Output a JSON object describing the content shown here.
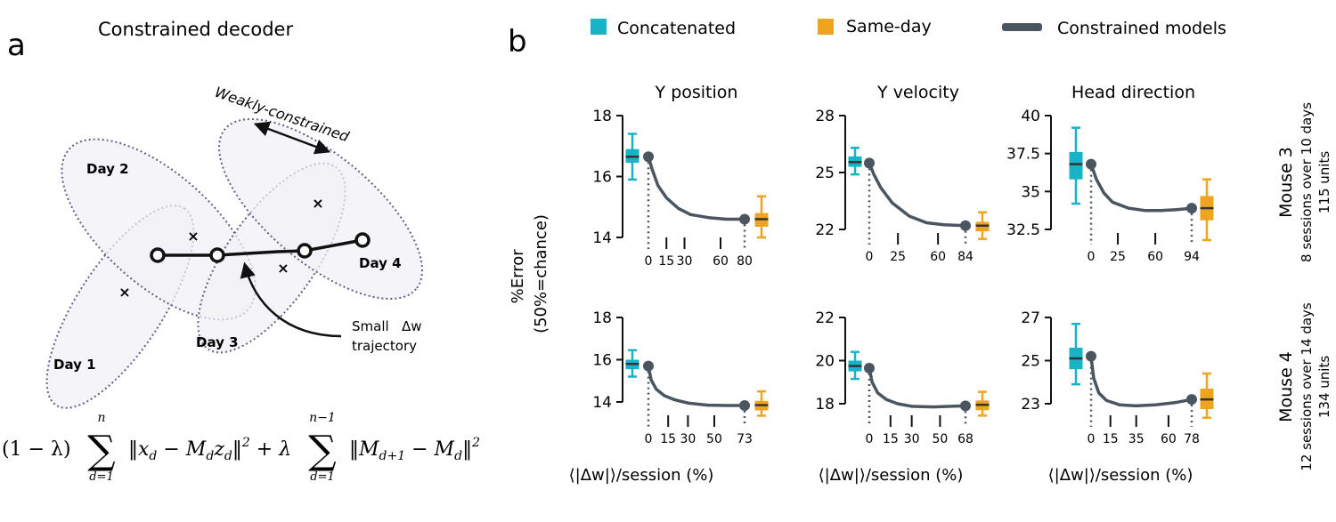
{
  "panel_a": {
    "letter": "a",
    "title": "Constrained decoder",
    "constraint_label": "Weakly-constrained",
    "days": [
      "Day 1",
      "Day 2",
      "Day 3",
      "Day 4"
    ],
    "annotation_line1": "Small   Δw",
    "annotation_line2": "trajectory",
    "equation": {
      "p1": "(1 − λ)",
      "sum_top_1": "n",
      "sum_bottom_1": "d=1",
      "norm1": "‖x",
      "norm1_sub": "d",
      "minus1": " − M",
      "minus1_sub": "d",
      "z": "z",
      "z_sub": "d",
      "close1": "‖",
      "sq1": "2",
      "plus": " + λ",
      "sum_top_2": "n−1",
      "sum_bottom_2": "d=1",
      "norm2": "‖M",
      "norm2_sub": "d+1",
      "minus2": " − M",
      "minus2_sub": "d",
      "close2": "‖",
      "sq2": "2"
    }
  },
  "panel_b": {
    "letter": "b",
    "y_axis_label_line1": "%Error",
    "y_axis_label_line2": "(50%=chance)",
    "x_axis_label": "⟨|Δw|⟩/session (%)"
  },
  "legend": [
    {
      "label": "Concatenated",
      "color": "#17b3c6",
      "shape": "square"
    },
    {
      "label": "Same-day",
      "color": "#eea41f",
      "shape": "square"
    },
    {
      "label": "Constrained models",
      "color": "#4a5560",
      "shape": "line"
    }
  ],
  "row_labels": [
    {
      "mouse": "Mouse 3",
      "detail1": "8 sessions over 10 days",
      "detail2": "115 units"
    },
    {
      "mouse": "Mouse 4",
      "detail1": "12 sessions over 14 days",
      "detail2": "134 units"
    }
  ],
  "chart_data": [
    {
      "type": "line",
      "title": "Y position",
      "row": 0,
      "ylim": [
        14,
        18
      ],
      "yticks": [
        14,
        16,
        18
      ],
      "xlim": [
        0,
        80
      ],
      "xticks": [
        0,
        15,
        30,
        60,
        80
      ],
      "curve_x": [
        0,
        3,
        8,
        15,
        25,
        35,
        50,
        65,
        80
      ],
      "curve_y": [
        16.65,
        16.25,
        15.7,
        15.3,
        14.95,
        14.75,
        14.65,
        14.6,
        14.6
      ],
      "concatenated_box": {
        "min": 15.9,
        "q1": 16.45,
        "median": 16.65,
        "q3": 16.9,
        "max": 17.4
      },
      "same_day_box": {
        "min": 14.0,
        "q1": 14.35,
        "median": 14.6,
        "q3": 14.8,
        "max": 15.35
      }
    },
    {
      "type": "line",
      "title": "Y velocity",
      "row": 0,
      "ylim": [
        22,
        28
      ],
      "yticks": [
        22,
        25,
        28
      ],
      "ytick_labels": [
        "22",
        "25",
        "28"
      ],
      "xlim": [
        0,
        84
      ],
      "xticks": [
        0,
        25,
        60,
        84
      ],
      "curve_x": [
        0,
        4,
        10,
        20,
        35,
        50,
        65,
        84
      ],
      "curve_y": [
        25.5,
        24.9,
        24.2,
        23.4,
        22.7,
        22.35,
        22.25,
        22.2
      ],
      "concatenated_box": {
        "min": 24.9,
        "q1": 25.3,
        "median": 25.55,
        "q3": 25.85,
        "max": 26.3
      },
      "same_day_box": {
        "min": 21.5,
        "q1": 21.9,
        "median": 22.2,
        "q3": 22.4,
        "max": 22.9
      }
    },
    {
      "type": "line",
      "title": "Head direction",
      "row": 0,
      "ylim": [
        32.5,
        40
      ],
      "yticks": [
        32.5,
        35,
        37.5,
        40
      ],
      "ytick_labels": [
        "32.5",
        "35",
        "37.5",
        "40"
      ],
      "xlim": [
        0,
        94
      ],
      "xticks": [
        0,
        25,
        60,
        94
      ],
      "curve_x": [
        0,
        5,
        12,
        20,
        35,
        50,
        65,
        80,
        94
      ],
      "curve_y": [
        36.8,
        35.8,
        34.9,
        34.3,
        33.9,
        33.75,
        33.75,
        33.8,
        33.9
      ],
      "concatenated_box": {
        "min": 34.2,
        "q1": 35.8,
        "median": 36.8,
        "q3": 37.6,
        "max": 39.2
      },
      "same_day_box": {
        "min": 31.8,
        "q1": 33.1,
        "median": 33.9,
        "q3": 34.7,
        "max": 35.8
      }
    },
    {
      "type": "line",
      "title": "",
      "row": 1,
      "ylim": [
        14,
        18
      ],
      "yticks": [
        14,
        16,
        18
      ],
      "xlim": [
        0,
        73
      ],
      "xticks": [
        0,
        15,
        30,
        50,
        73
      ],
      "curve_x": [
        0,
        2,
        6,
        12,
        20,
        30,
        45,
        60,
        73
      ],
      "curve_y": [
        15.7,
        15.05,
        14.6,
        14.3,
        14.1,
        13.95,
        13.85,
        13.83,
        13.83
      ],
      "concatenated_box": {
        "min": 15.2,
        "q1": 15.55,
        "median": 15.8,
        "q3": 16.0,
        "max": 16.45
      },
      "same_day_box": {
        "min": 13.35,
        "q1": 13.6,
        "median": 13.85,
        "q3": 14.05,
        "max": 14.5
      }
    },
    {
      "type": "line",
      "title": "",
      "row": 1,
      "ylim": [
        18,
        22
      ],
      "yticks": [
        18,
        20,
        22
      ],
      "xlim": [
        0,
        68
      ],
      "xticks": [
        0,
        15,
        30,
        50,
        68
      ],
      "curve_x": [
        0,
        2,
        6,
        12,
        20,
        30,
        45,
        58,
        68
      ],
      "curve_y": [
        19.65,
        19.0,
        18.5,
        18.2,
        18.0,
        17.88,
        17.85,
        17.88,
        17.9
      ],
      "concatenated_box": {
        "min": 19.15,
        "q1": 19.5,
        "median": 19.75,
        "q3": 20.0,
        "max": 20.4
      },
      "same_day_box": {
        "min": 17.45,
        "q1": 17.7,
        "median": 17.95,
        "q3": 18.15,
        "max": 18.55
      }
    },
    {
      "type": "line",
      "title": "",
      "row": 1,
      "ylim": [
        23,
        27
      ],
      "yticks": [
        23,
        25,
        27
      ],
      "xlim": [
        0,
        78
      ],
      "xticks": [
        0,
        15,
        35,
        60,
        78
      ],
      "curve_x": [
        0,
        2,
        6,
        12,
        22,
        35,
        50,
        65,
        78
      ],
      "curve_y": [
        25.2,
        24.2,
        23.5,
        23.15,
        22.95,
        22.9,
        22.95,
        23.05,
        23.2
      ],
      "concatenated_box": {
        "min": 23.9,
        "q1": 24.6,
        "median": 25.1,
        "q3": 25.6,
        "max": 26.7
      },
      "same_day_box": {
        "min": 22.35,
        "q1": 22.75,
        "median": 23.2,
        "q3": 23.7,
        "max": 24.4
      }
    }
  ]
}
